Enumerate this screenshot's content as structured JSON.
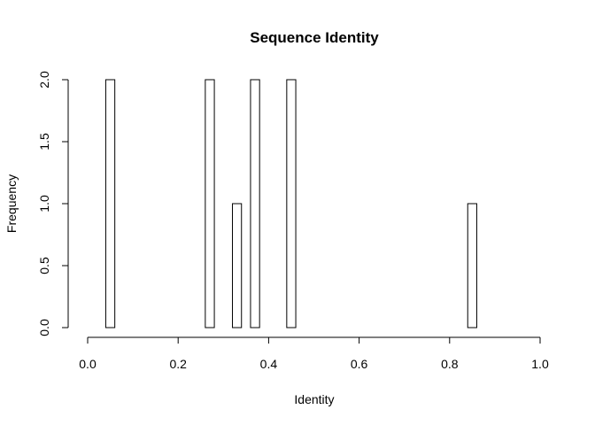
{
  "chart_data": {
    "type": "bar",
    "title": "Sequence Identity",
    "xlabel": "Identity",
    "ylabel": "Frequency",
    "xlim": [
      0,
      1
    ],
    "ylim": [
      0,
      2
    ],
    "bin_width": 0.02,
    "x_range": [
      0.04,
      0.86
    ],
    "x_ticks": [
      "0.0",
      "0.2",
      "0.4",
      "0.6",
      "0.8",
      "1.0"
    ],
    "y_ticks": [
      "0.0",
      "0.5",
      "1.0",
      "1.5",
      "2.0"
    ],
    "bars": [
      {
        "x0": 0.04,
        "x1": 0.06,
        "count": 2
      },
      {
        "x0": 0.26,
        "x1": 0.28,
        "count": 2
      },
      {
        "x0": 0.32,
        "x1": 0.34,
        "count": 1
      },
      {
        "x0": 0.36,
        "x1": 0.38,
        "count": 2
      },
      {
        "x0": 0.44,
        "x1": 0.46,
        "count": 2
      },
      {
        "x0": 0.84,
        "x1": 0.86,
        "count": 1
      }
    ],
    "grid": false,
    "legend": "none"
  }
}
